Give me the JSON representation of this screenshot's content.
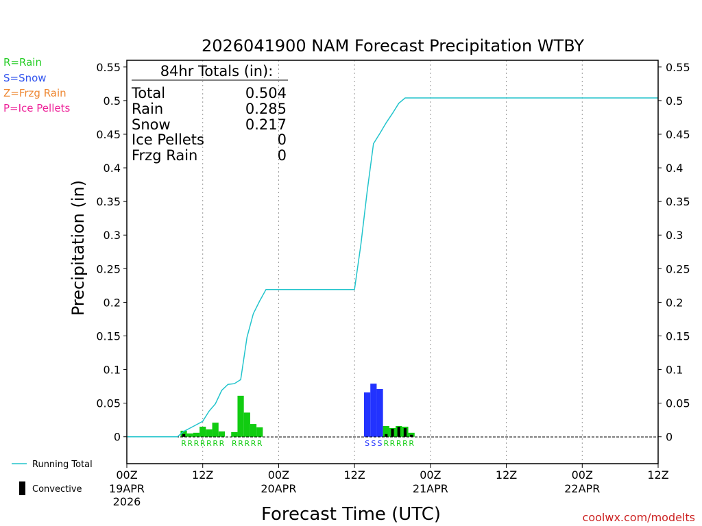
{
  "title": "2026041900 NAM Forecast Precipitation WTBY",
  "legend_types": [
    {
      "label": "R=Rain",
      "color": "#22cc22"
    },
    {
      "label": "S=Snow",
      "color": "#3355ee"
    },
    {
      "label": "Z=Frzg Rain",
      "color": "#ee8833"
    },
    {
      "label": "P=Ice Pellets",
      "color": "#ee2299"
    }
  ],
  "totals": {
    "header": "84hr Totals (in):",
    "rows": [
      {
        "label": "Total",
        "value": "0.504"
      },
      {
        "label": "Rain",
        "value": "0.285"
      },
      {
        "label": "Snow",
        "value": "0.217"
      },
      {
        "label": "Ice Pellets",
        "value": "0"
      },
      {
        "label": "Frzg Rain",
        "value": "0"
      }
    ]
  },
  "bottom_legend": {
    "running_total": "Running Total",
    "convective": "Convective"
  },
  "credit": "coolwx.com/modelts",
  "colors": {
    "rain": "#11cc11",
    "snow": "#2233ff",
    "convective": "#000000",
    "running_total": "#22c4cc",
    "credit": "#cc2222"
  },
  "chart_data": {
    "type": "bar",
    "title": "2026041900 NAM Forecast Precipitation WTBY",
    "xlabel": "Forecast Time (UTC)",
    "ylabel": "Precipitation (in)",
    "xlim": [
      0,
      84
    ],
    "ylim": [
      -0.04,
      0.56
    ],
    "y_ticks": [
      "0",
      "0.05",
      "0.1",
      "0.15",
      "0.2",
      "0.25",
      "0.3",
      "0.35",
      "0.4",
      "0.45",
      "0.5",
      "0.55"
    ],
    "x_ticks": [
      {
        "hour": 0,
        "label": "00Z",
        "date": "19APR",
        "year": "2026"
      },
      {
        "hour": 12,
        "label": "12Z",
        "date": "",
        "year": ""
      },
      {
        "hour": 24,
        "label": "00Z",
        "date": "20APR",
        "year": ""
      },
      {
        "hour": 36,
        "label": "12Z",
        "date": "",
        "year": ""
      },
      {
        "hour": 48,
        "label": "00Z",
        "date": "21APR",
        "year": ""
      },
      {
        "hour": 60,
        "label": "12Z",
        "date": "",
        "year": ""
      },
      {
        "hour": 72,
        "label": "00Z",
        "date": "22APR",
        "year": ""
      },
      {
        "hour": 84,
        "label": "12Z",
        "date": "",
        "year": ""
      }
    ],
    "bars": [
      {
        "hour": 9,
        "value": 0.009,
        "type": "R",
        "convective": 0.004
      },
      {
        "hour": 10,
        "value": 0.005,
        "type": "R",
        "convective": 0
      },
      {
        "hour": 11,
        "value": 0.006,
        "type": "R",
        "convective": 0
      },
      {
        "hour": 12,
        "value": 0.015,
        "type": "R",
        "convective": 0
      },
      {
        "hour": 13,
        "value": 0.011,
        "type": "R",
        "convective": 0
      },
      {
        "hour": 14,
        "value": 0.021,
        "type": "R",
        "convective": 0
      },
      {
        "hour": 15,
        "value": 0.008,
        "type": "R",
        "convective": 0
      },
      {
        "hour": 17,
        "value": 0.007,
        "type": "R",
        "convective": 0
      },
      {
        "hour": 18,
        "value": 0.061,
        "type": "R",
        "convective": 0
      },
      {
        "hour": 19,
        "value": 0.036,
        "type": "R",
        "convective": 0
      },
      {
        "hour": 20,
        "value": 0.019,
        "type": "R",
        "convective": 0
      },
      {
        "hour": 21,
        "value": 0.014,
        "type": "R",
        "convective": 0
      },
      {
        "hour": 38,
        "value": 0.066,
        "type": "S",
        "convective": 0
      },
      {
        "hour": 39,
        "value": 0.079,
        "type": "S",
        "convective": 0
      },
      {
        "hour": 40,
        "value": 0.071,
        "type": "S",
        "convective": 0
      },
      {
        "hour": 41,
        "value": 0.016,
        "type": "R",
        "convective": 0.004
      },
      {
        "hour": 42,
        "value": 0.013,
        "type": "R",
        "convective": 0.012
      },
      {
        "hour": 43,
        "value": 0.016,
        "type": "R",
        "convective": 0.015
      },
      {
        "hour": 44,
        "value": 0.015,
        "type": "R",
        "convective": 0.013
      },
      {
        "hour": 45,
        "value": 0.006,
        "type": "R",
        "convective": 0.003
      }
    ],
    "running_total": {
      "x": [
        0,
        8,
        9,
        10,
        11,
        12,
        13,
        14,
        15,
        16,
        17,
        18,
        19,
        20,
        21,
        22,
        23,
        24,
        36,
        37,
        38,
        39,
        40,
        41,
        42,
        43,
        44,
        45,
        46,
        84
      ],
      "y": [
        0,
        0,
        0.008,
        0.013,
        0.018,
        0.023,
        0.038,
        0.049,
        0.069,
        0.078,
        0.079,
        0.085,
        0.148,
        0.183,
        0.202,
        0.219,
        0.219,
        0.219,
        0.219,
        0.286,
        0.365,
        0.436,
        0.451,
        0.467,
        0.481,
        0.496,
        0.504,
        0.504,
        0.504,
        0.504
      ]
    }
  }
}
